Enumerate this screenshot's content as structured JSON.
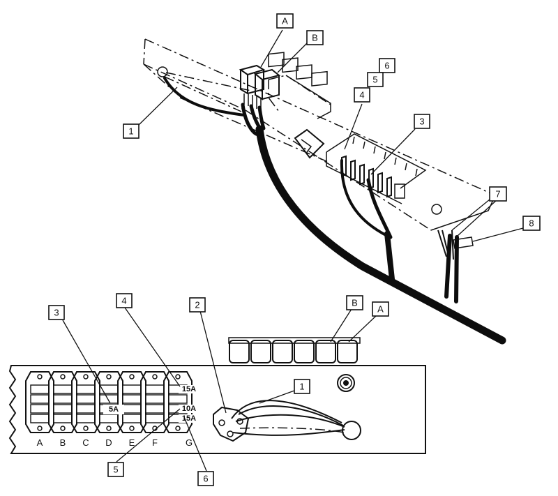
{
  "top_view": {
    "callouts": {
      "1": "1",
      "3": "3",
      "4": "4",
      "5": "5",
      "6": "6",
      "7": "7",
      "8": "8",
      "A": "A",
      "B": "B"
    }
  },
  "bottom_view": {
    "callouts": {
      "1": "1",
      "2": "2",
      "3": "3",
      "4": "4",
      "5": "5",
      "6": "6",
      "A": "A",
      "B": "B"
    },
    "columns": [
      "A",
      "B",
      "C",
      "D",
      "E",
      "F",
      "G"
    ],
    "fuses": {
      "d_fuse": "5A",
      "g_top": "15A",
      "g_mid": "10A",
      "g_bot": "15A"
    }
  }
}
